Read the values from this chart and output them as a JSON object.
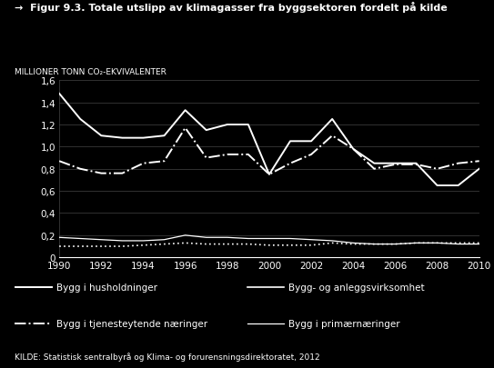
{
  "title": "→  Figur 9.3. Totale utslipp av klimagasser fra byggsektoren fordelt på kilde",
  "ylabel": "MILLIONER TONN CO₂-EKVIVALENTER",
  "source": "KILDE: Statistisk sentralbyrå og Klima- og forurensningsdirektoratet, 2012",
  "years": [
    1990,
    1991,
    1992,
    1993,
    1994,
    1995,
    1996,
    1997,
    1998,
    1999,
    2000,
    2001,
    2002,
    2003,
    2004,
    2005,
    2006,
    2007,
    2008,
    2009,
    2010
  ],
  "bygg_husholdninger": [
    1.48,
    1.25,
    1.1,
    1.08,
    1.08,
    1.1,
    1.33,
    1.15,
    1.2,
    1.2,
    0.75,
    1.05,
    1.05,
    1.25,
    0.98,
    0.85,
    0.85,
    0.85,
    0.65,
    0.65,
    0.8
  ],
  "bygg_anlegg": [
    0.1,
    0.1,
    0.1,
    0.1,
    0.11,
    0.12,
    0.13,
    0.12,
    0.12,
    0.12,
    0.11,
    0.11,
    0.11,
    0.13,
    0.12,
    0.12,
    0.12,
    0.13,
    0.13,
    0.13,
    0.13
  ],
  "bygg_tjeneste": [
    0.87,
    0.8,
    0.76,
    0.76,
    0.85,
    0.87,
    1.17,
    0.9,
    0.93,
    0.93,
    0.75,
    0.85,
    0.93,
    1.1,
    0.98,
    0.8,
    0.84,
    0.84,
    0.8,
    0.85,
    0.87
  ],
  "bygg_primaer": [
    0.18,
    0.17,
    0.16,
    0.15,
    0.15,
    0.16,
    0.2,
    0.18,
    0.18,
    0.17,
    0.17,
    0.17,
    0.16,
    0.15,
    0.13,
    0.12,
    0.12,
    0.13,
    0.13,
    0.12,
    0.12
  ],
  "bg_color": "#000000",
  "text_color": "#ffffff",
  "line_color": "#ffffff",
  "grid_color": "#444444",
  "ylim": [
    0,
    1.6
  ],
  "yticks": [
    0,
    0.2,
    0.4,
    0.6,
    0.8,
    1.0,
    1.2,
    1.4,
    1.6
  ],
  "xticks": [
    1990,
    1992,
    1994,
    1996,
    1998,
    2000,
    2002,
    2004,
    2006,
    2008,
    2010
  ],
  "legend_labels": [
    "Bygg i husholdninger",
    "Bygg- og anleggsvirksomhet",
    "Bygg i tjenesteytende næringer",
    "Bygg i primærnæringer"
  ]
}
